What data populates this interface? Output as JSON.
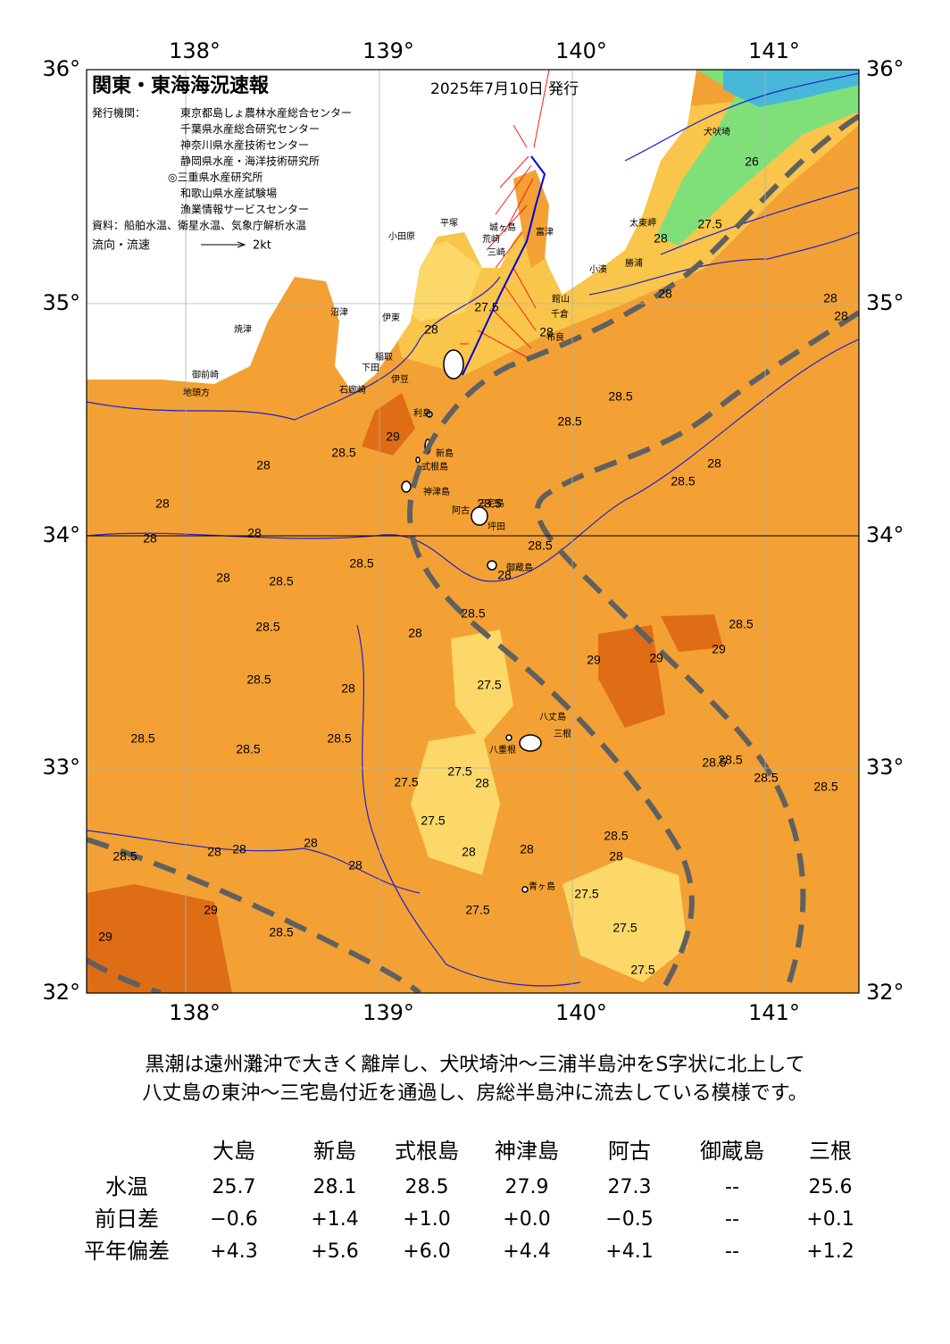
{
  "header": {
    "title": "関東・東海海況速報",
    "date": "2025年7月10日 発行"
  },
  "issuers": {
    "label": "発行機関：",
    "list": [
      "東京都島しょ農林水産総合センター",
      "千葉県水産総合研究センター",
      "神奈川県水産技術センター",
      "静岡県水産・海洋技術研究所",
      "◎三重県水産研究所",
      "和歌山県水産試験場",
      "漁業情報サービスセンター"
    ]
  },
  "source": "資料：船舶水温、衛星水温、気象庁解析水温",
  "legend": {
    "label": "流向・流速",
    "scale": "2kt"
  },
  "map": {
    "lon_labels": [
      "138°",
      "139°",
      "140°",
      "141°"
    ],
    "lat_labels": [
      "36°",
      "35°",
      "34°",
      "33°",
      "32°"
    ],
    "contour_labels": [
      "28",
      "27.5",
      "28",
      "28",
      "28",
      "28",
      "28.5",
      "28.5",
      "28",
      "28.5",
      "29",
      "28.5",
      "28",
      "28",
      "28",
      "28",
      "28.5",
      "28",
      "28.5",
      "28.5",
      "28",
      "28.5",
      "28.5",
      "28.5",
      "28",
      "28.5",
      "29",
      "29",
      "29",
      "28.5",
      "28",
      "27.5",
      "28.5",
      "28.5",
      "28.5",
      "27.5",
      "27.5",
      "28",
      "27.5",
      "28.5",
      "28.5",
      "28.5",
      "28.5",
      "28.5",
      "28",
      "28",
      "28",
      "28",
      "28",
      "28",
      "28.5",
      "28",
      "27.5",
      "27.5",
      "29",
      "28.5",
      "29",
      "27.5",
      "27.5",
      "28",
      "27.5",
      "26"
    ],
    "places": [
      "犬吠埼",
      "太東岬",
      "勝浦",
      "小湊",
      "館山",
      "千倉",
      "布良",
      "富津",
      "城ヶ島",
      "三崎",
      "荒崎",
      "平塚",
      "小田原",
      "伊東",
      "稲取",
      "下田",
      "石廊崎",
      "沼津",
      "焼津",
      "御前崎",
      "地頭方",
      "利島",
      "新島",
      "式根島",
      "神津島",
      "三宅島",
      "坪田",
      "御蔵島",
      "八丈島",
      "三根",
      "八重根",
      "青ヶ島",
      "阿古",
      "伊豆"
    ]
  },
  "summary": [
    "黒潮は遠州灘沖で大きく離岸し、犬吠埼沖～三浦半島沖をS字状に北上して",
    "八丈島の東沖～三宅島付近を通過し、房総半島沖に流去している模様です。"
  ],
  "table": {
    "columns": [
      "大島",
      "新島",
      "式根島",
      "神津島",
      "阿古",
      "御蔵島",
      "三根"
    ],
    "rows": [
      {
        "label": "水温",
        "cells": [
          "25.7",
          "28.1",
          "28.5",
          "27.9",
          "27.3",
          "--",
          "25.6"
        ]
      },
      {
        "label": "前日差",
        "cells": [
          "−0.6",
          "+1.4",
          "+1.0",
          "+0.0",
          "−0.5",
          "--",
          "+0.1"
        ]
      },
      {
        "label": "平年偏差",
        "cells": [
          "+4.3",
          "+5.6",
          "+6.0",
          "+4.4",
          "+4.1",
          "--",
          "+1.2"
        ]
      }
    ]
  }
}
